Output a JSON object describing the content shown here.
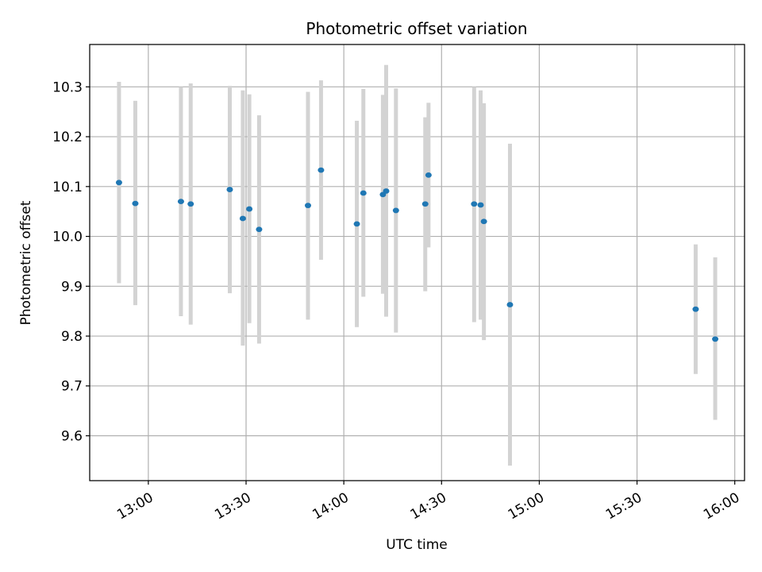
{
  "chart_data": {
    "type": "scatter",
    "title": "Photometric offset variation",
    "xlabel": "UTC time",
    "ylabel": "Photometric offset",
    "x_unit": "UTC time of day (hh:mm)",
    "xlim": [
      "12:42",
      "16:03"
    ],
    "ylim": [
      9.51,
      10.385
    ],
    "x_ticks": [
      "13:00",
      "13:30",
      "14:00",
      "14:30",
      "15:00",
      "15:30",
      "16:00"
    ],
    "y_ticks": [
      "9.6",
      "9.7",
      "9.8",
      "9.9",
      "10.0",
      "10.1",
      "10.2",
      "10.3"
    ],
    "grid": true,
    "legend": "none",
    "colors": {
      "marker": "#1f77b4",
      "errorbar": "#d3d3d3",
      "grid": "#b0b0b0"
    },
    "series": [
      {
        "points": [
          {
            "x": "12:51",
            "y": 10.108,
            "ylow": 9.906,
            "yhigh": 10.31
          },
          {
            "x": "12:56",
            "y": 10.066,
            "ylow": 9.862,
            "yhigh": 10.272
          },
          {
            "x": "13:10",
            "y": 10.07,
            "ylow": 9.84,
            "yhigh": 10.3
          },
          {
            "x": "13:13",
            "y": 10.065,
            "ylow": 9.823,
            "yhigh": 10.307
          },
          {
            "x": "13:25",
            "y": 10.094,
            "ylow": 9.886,
            "yhigh": 10.302
          },
          {
            "x": "13:29",
            "y": 10.036,
            "ylow": 9.781,
            "yhigh": 10.293
          },
          {
            "x": "13:31",
            "y": 10.055,
            "ylow": 9.826,
            "yhigh": 10.285
          },
          {
            "x": "13:34",
            "y": 10.014,
            "ylow": 9.785,
            "yhigh": 10.243
          },
          {
            "x": "13:49",
            "y": 10.062,
            "ylow": 9.833,
            "yhigh": 10.29
          },
          {
            "x": "13:53",
            "y": 10.133,
            "ylow": 9.953,
            "yhigh": 10.313
          },
          {
            "x": "14:04",
            "y": 10.025,
            "ylow": 9.818,
            "yhigh": 10.232
          },
          {
            "x": "14:06",
            "y": 10.087,
            "ylow": 9.879,
            "yhigh": 10.296
          },
          {
            "x": "14:12",
            "y": 10.084,
            "ylow": 9.885,
            "yhigh": 10.284
          },
          {
            "x": "14:13",
            "y": 10.091,
            "ylow": 9.839,
            "yhigh": 10.344
          },
          {
            "x": "14:16",
            "y": 10.052,
            "ylow": 9.807,
            "yhigh": 10.297
          },
          {
            "x": "14:25",
            "y": 10.065,
            "ylow": 9.89,
            "yhigh": 10.239
          },
          {
            "x": "14:26",
            "y": 10.123,
            "ylow": 9.978,
            "yhigh": 10.268
          },
          {
            "x": "14:40",
            "y": 10.065,
            "ylow": 9.828,
            "yhigh": 10.3
          },
          {
            "x": "14:42",
            "y": 10.063,
            "ylow": 9.833,
            "yhigh": 10.293
          },
          {
            "x": "14:43",
            "y": 10.03,
            "ylow": 9.792,
            "yhigh": 10.267
          },
          {
            "x": "14:51",
            "y": 9.863,
            "ylow": 9.54,
            "yhigh": 10.186
          },
          {
            "x": "15:48",
            "y": 9.854,
            "ylow": 9.724,
            "yhigh": 9.984
          },
          {
            "x": "15:54",
            "y": 9.794,
            "ylow": 9.632,
            "yhigh": 9.958
          }
        ]
      }
    ]
  }
}
